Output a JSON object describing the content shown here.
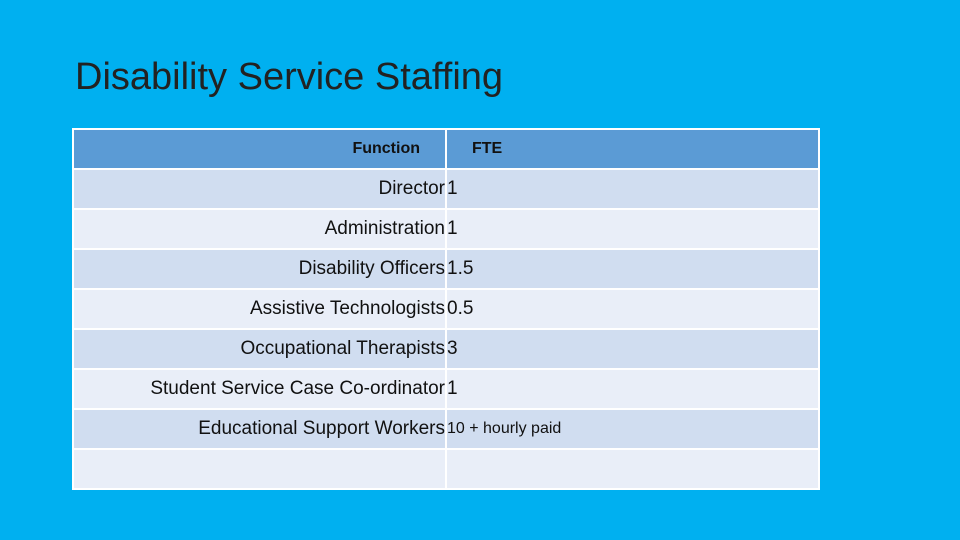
{
  "slide": {
    "title": "Disability Service Staffing"
  },
  "table": {
    "headers": [
      "Function",
      "FTE"
    ],
    "rows": [
      {
        "function": "Director",
        "fte": "1"
      },
      {
        "function": "Administration",
        "fte": "1"
      },
      {
        "function": "Disability Officers",
        "fte": "1.5"
      },
      {
        "function": "Assistive Technologists",
        "fte": "0.5"
      },
      {
        "function": "Occupational Therapists",
        "fte": "3"
      },
      {
        "function": "Student Service Case Co-ordinator",
        "fte": "1"
      },
      {
        "function": "Educational Support Workers",
        "fte": "10 + hourly paid"
      },
      {
        "function": "",
        "fte": ""
      }
    ]
  },
  "colors": {
    "background": "#00B0F0",
    "header": "#5B9BD5",
    "row_odd": "#D0DDF0",
    "row_even": "#E9EEF8"
  }
}
